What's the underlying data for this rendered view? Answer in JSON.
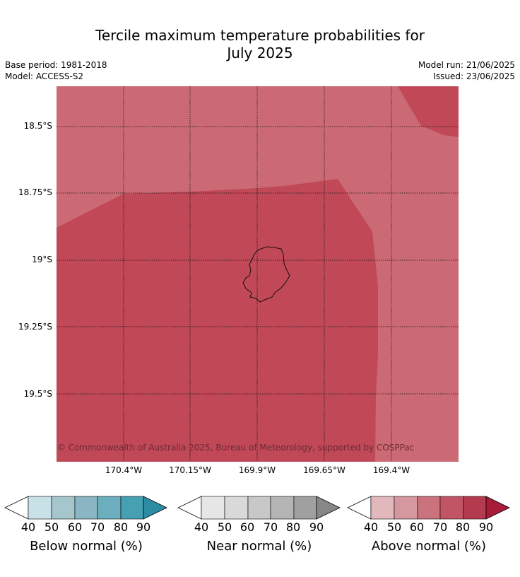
{
  "header": {
    "title_line1": "Tercile maximum temperature probabilities for",
    "title_line2": "July 2025",
    "base_period": "Base period: 1981-2018",
    "model": "Model: ACCESS-S2",
    "model_run": "Model run: 21/06/2025",
    "issued": "Issued: 23/06/2025"
  },
  "map": {
    "lat_labels": [
      "18.5°S",
      "18.75°S",
      "19°S",
      "19.25°S",
      "19.5°S"
    ],
    "lon_labels": [
      "170.4°W",
      "170.15°W",
      "169.9°W",
      "169.65°W",
      "169.4°W"
    ],
    "copyright": "© Commonwealth of Australia 2025, Bureau of Meteorology, supported by COSPPac",
    "fill_colors": {
      "above_60_70": "#cb6a74",
      "above_70_80": "#c04857",
      "above_80_90": "#c04857"
    }
  },
  "legends": [
    {
      "label": "Below normal (%)",
      "ticks": [
        "40",
        "50",
        "60",
        "70",
        "80",
        "90"
      ],
      "colors": [
        "#ffffff",
        "#c8e1e7",
        "#a5c6cc",
        "#89b6c2",
        "#6baebd",
        "#44a0b2",
        "#2b8ca3"
      ]
    },
    {
      "label": "Near normal (%)",
      "ticks": [
        "40",
        "50",
        "60",
        "70",
        "80",
        "90"
      ],
      "colors": [
        "#ffffff",
        "#e6e6e6",
        "#d9d9d9",
        "#c8c8c8",
        "#b4b4b4",
        "#a0a0a0",
        "#878787"
      ]
    },
    {
      "label": "Above normal (%)",
      "ticks": [
        "40",
        "50",
        "60",
        "70",
        "80",
        "90"
      ],
      "colors": [
        "#ffffff",
        "#e2b8bd",
        "#d6989f",
        "#cb737c",
        "#c25565",
        "#b43a4d",
        "#a91c39"
      ]
    }
  ]
}
